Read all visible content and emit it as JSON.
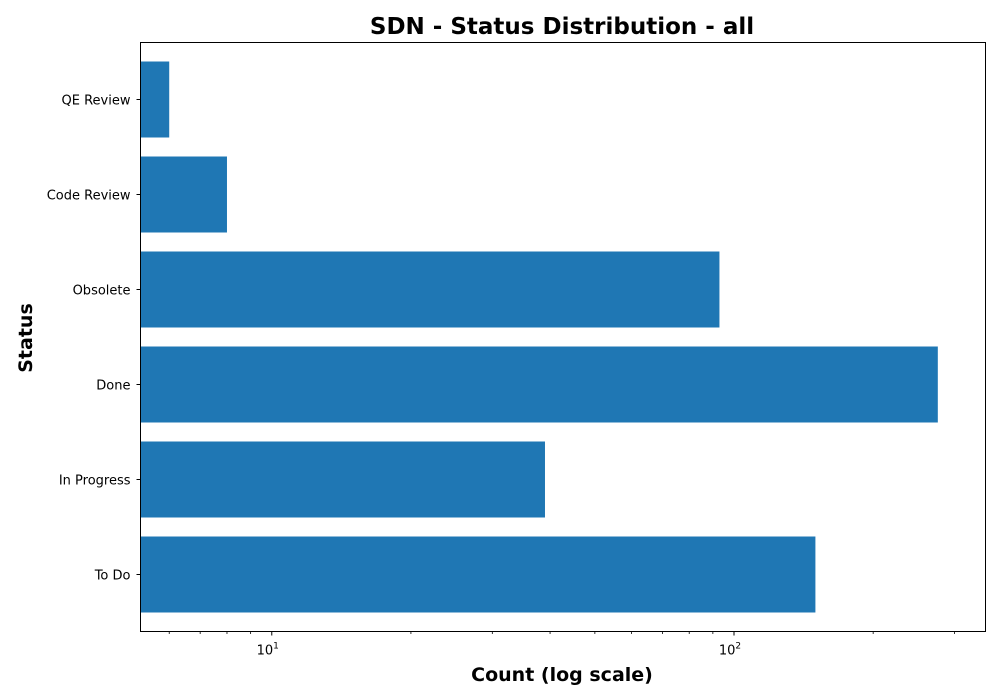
{
  "chart_data": {
    "type": "bar",
    "orientation": "horizontal",
    "title": "SDN - Status Distribution - all",
    "xlabel": "Count (log scale)",
    "ylabel": "Status",
    "x_scale": "log",
    "xlim": [
      5.2,
      350
    ],
    "categories": [
      "To Do",
      "In Progress",
      "Done",
      "Obsolete",
      "Code Review",
      "QE Review"
    ],
    "values": [
      150,
      39,
      276,
      93,
      8,
      6
    ],
    "x_ticks": [
      10,
      100
    ],
    "x_tick_labels": [
      {
        "base": "10",
        "exp": "1"
      },
      {
        "base": "10",
        "exp": "2"
      }
    ],
    "grid": false,
    "bar_color": "#1f77b4"
  }
}
